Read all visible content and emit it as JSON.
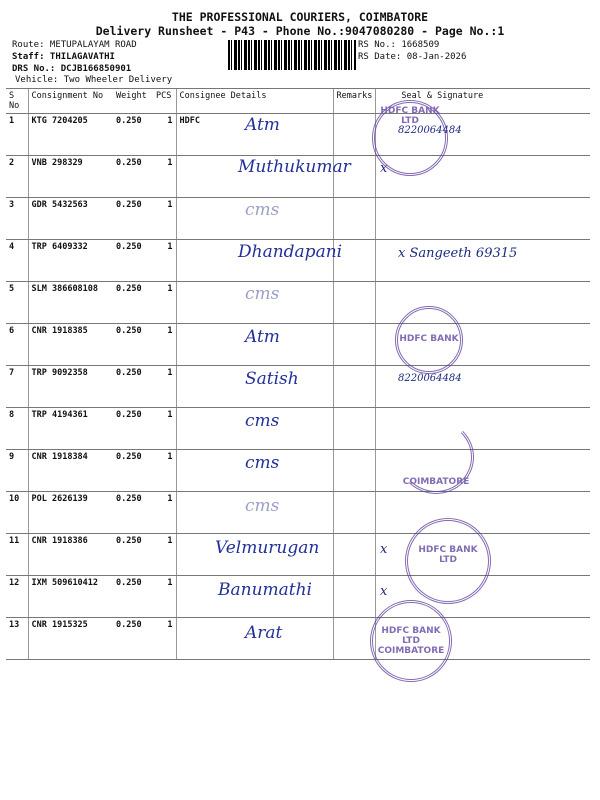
{
  "header": {
    "company": "THE PROFESSIONAL COURIERS, COIMBATORE",
    "subtitle": "Delivery Runsheet - P43 - Phone No.:9047080280 - Page No.:1",
    "route": "Route: METUPALAYAM ROAD",
    "staff": "Staff: THILAGAVATHI",
    "drs": "DRS No.: DCJB166850901",
    "vehicle": "Vehicle: Two Wheeler Delivery",
    "rs_no": "RS No.: 1668509",
    "rs_date": "RS Date: 08-Jan-2026"
  },
  "columns": [
    "S No",
    "Consignment No",
    "Weight",
    "PCS",
    "Consignee Details",
    "Remarks",
    "Seal & Signature"
  ],
  "rows": [
    {
      "sno": "1",
      "cn": "KTG 7204205",
      "wt": "0.250",
      "pcs": "1",
      "details": "HDFC",
      "hw": "Atm",
      "sig": "8220064484"
    },
    {
      "sno": "2",
      "cn": "VNB 298329",
      "wt": "0.250",
      "pcs": "1",
      "details": "",
      "hw": "Muthukumar",
      "sig": "x"
    },
    {
      "sno": "3",
      "cn": "GDR 5432563",
      "wt": "0.250",
      "pcs": "1",
      "details": "",
      "hw": "cms",
      "sig": ""
    },
    {
      "sno": "4",
      "cn": "TRP 6409332",
      "wt": "0.250",
      "pcs": "1",
      "details": "",
      "hw": "Dhandapani",
      "sig": "x Sangeeth 69315"
    },
    {
      "sno": "5",
      "cn": "SLM 386608108",
      "wt": "0.250",
      "pcs": "1",
      "details": "",
      "hw": "cms",
      "sig": ""
    },
    {
      "sno": "6",
      "cn": "CNR 1918385",
      "wt": "0.250",
      "pcs": "1",
      "details": "",
      "hw": "Atm",
      "sig": ""
    },
    {
      "sno": "7",
      "cn": "TRP 9092358",
      "wt": "0.250",
      "pcs": "1",
      "details": "",
      "hw": "Satish",
      "sig": "8220064484"
    },
    {
      "sno": "8",
      "cn": "TRP 4194361",
      "wt": "0.250",
      "pcs": "1",
      "details": "",
      "hw": "cms",
      "sig": ""
    },
    {
      "sno": "9",
      "cn": "CNR 1918384",
      "wt": "0.250",
      "pcs": "1",
      "details": "",
      "hw": "cms",
      "sig": ""
    },
    {
      "sno": "10",
      "cn": "POL 2626139",
      "wt": "0.250",
      "pcs": "1",
      "details": "",
      "hw": "cms",
      "sig": ""
    },
    {
      "sno": "11",
      "cn": "CNR 1918386",
      "wt": "0.250",
      "pcs": "1",
      "details": "",
      "hw": "Velmurugan",
      "sig": "x"
    },
    {
      "sno": "12",
      "cn": "IXM 509610412",
      "wt": "0.250",
      "pcs": "1",
      "details": "",
      "hw": "Banumathi",
      "sig": "x"
    },
    {
      "sno": "13",
      "cn": "CNR 1915325",
      "wt": "0.250",
      "pcs": "1",
      "details": "",
      "hw": "Arat",
      "sig": ""
    }
  ],
  "stamps": [
    "HDFC BANK LTD",
    "HDFC BANK",
    "COIMBATORE",
    "HDFC BANK LTD",
    "HDFC BANK LTD COIMBATORE"
  ]
}
